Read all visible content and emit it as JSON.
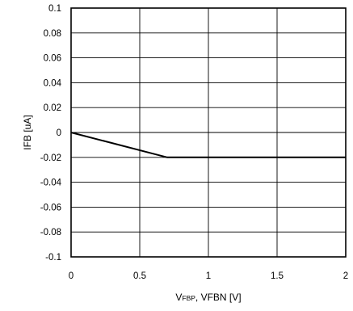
{
  "chart_data": {
    "type": "line",
    "title": "",
    "xlabel_parts": {
      "main": "V",
      "sub": "FBP",
      "rest": ", VFBN [V]"
    },
    "ylabel": "IFB [uA]",
    "xlim": [
      0,
      2
    ],
    "ylim": [
      -0.1,
      0.1
    ],
    "x_ticks": [
      0,
      0.5,
      1,
      1.5,
      2
    ],
    "x_tick_labels": [
      "0",
      "0.5",
      "1",
      "1.5",
      "2"
    ],
    "y_ticks": [
      0.1,
      0.08,
      0.06,
      0.04,
      0.02,
      0,
      -0.02,
      -0.04,
      -0.06,
      -0.08,
      -0.1
    ],
    "y_tick_labels": [
      "0.1",
      "0.08",
      "0.06",
      "0.04",
      "0.02",
      "0",
      "-0.02",
      "-0.04",
      "-0.06",
      "-0.08",
      "-0.1"
    ],
    "grid": true,
    "series": [
      {
        "color": "#000000",
        "x": [
          0,
          0.7,
          2
        ],
        "y": [
          0,
          -0.02,
          -0.02
        ]
      }
    ]
  }
}
